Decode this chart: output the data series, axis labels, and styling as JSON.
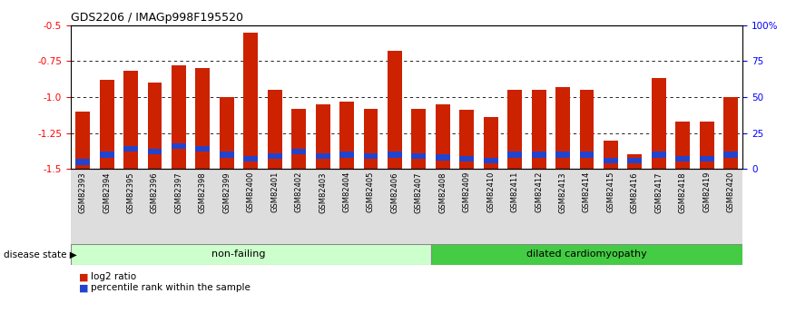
{
  "title": "GDS2206 / IMAGp998F195520",
  "samples": [
    "GSM82393",
    "GSM82394",
    "GSM82395",
    "GSM82396",
    "GSM82397",
    "GSM82398",
    "GSM82399",
    "GSM82400",
    "GSM82401",
    "GSM82402",
    "GSM82403",
    "GSM82404",
    "GSM82405",
    "GSM82406",
    "GSM82407",
    "GSM82408",
    "GSM82409",
    "GSM82410",
    "GSM82411",
    "GSM82412",
    "GSM82413",
    "GSM82414",
    "GSM82415",
    "GSM82416",
    "GSM82417",
    "GSM82418",
    "GSM82419",
    "GSM82420"
  ],
  "log2_ratio": [
    -1.1,
    -0.88,
    -0.82,
    -0.9,
    -0.78,
    -0.8,
    -1.0,
    -0.55,
    -0.95,
    -1.08,
    -1.05,
    -1.03,
    -1.08,
    -0.68,
    -1.08,
    -1.05,
    -1.09,
    -1.14,
    -0.95,
    -0.95,
    -0.93,
    -0.95,
    -1.3,
    -1.4,
    -0.87,
    -1.17,
    -1.17,
    -1.0
  ],
  "percentile_rank": [
    3,
    8,
    12,
    10,
    14,
    12,
    8,
    5,
    7,
    10,
    7,
    8,
    7,
    8,
    7,
    6,
    5,
    4,
    8,
    8,
    8,
    8,
    4,
    4,
    8,
    5,
    5,
    8
  ],
  "non_failing_count": 15,
  "ylim_left": [
    -1.5,
    -0.5
  ],
  "yticks_left": [
    -1.5,
    -1.25,
    -1.0,
    -0.75,
    -0.5
  ],
  "yticks_right": [
    0,
    25,
    50,
    75,
    100
  ],
  "bar_color_red": "#CC2200",
  "bar_color_blue": "#2244CC",
  "non_failing_color": "#CCFFCC",
  "dilated_color": "#44CC44",
  "disease_state_label": "disease state",
  "non_failing_label": "non-failing",
  "dilated_label": "dilated cardiomyopathy",
  "legend_red_label": "log2 ratio",
  "legend_blue_label": "percentile rank within the sample",
  "bar_width": 0.6
}
